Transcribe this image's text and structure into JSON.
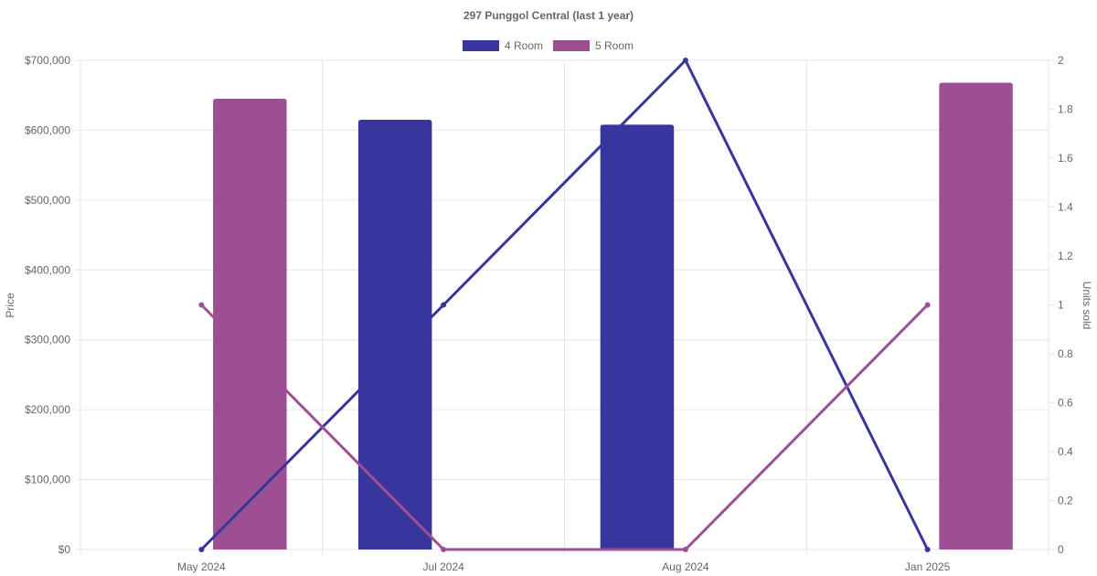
{
  "chart_data": {
    "type": "bar",
    "title": "297 Punggol Central (last 1 year)",
    "categories": [
      "May 2024",
      "Jul 2024",
      "Aug 2024",
      "Jan 2025"
    ],
    "y_left": {
      "label": "Price",
      "min": 0,
      "max": 700000,
      "ticks": [
        "$0",
        "$100,000",
        "$200,000",
        "$300,000",
        "$400,000",
        "$500,000",
        "$600,000",
        "$700,000"
      ],
      "tick_values": [
        0,
        100000,
        200000,
        300000,
        400000,
        500000,
        600000,
        700000
      ]
    },
    "y_right": {
      "label": "Units sold",
      "min": 0,
      "max": 2,
      "ticks": [
        "0",
        "0.2",
        "0.4",
        "0.6",
        "0.8",
        "1",
        "1.2",
        "1.4",
        "1.6",
        "1.8",
        "2"
      ],
      "tick_values": [
        0,
        0.2,
        0.4,
        0.6,
        0.8,
        1,
        1.2,
        1.4,
        1.6,
        1.8,
        2
      ]
    },
    "series": [
      {
        "name": "4 Room",
        "color": "#39359e",
        "price_values": [
          null,
          615000,
          608000,
          null
        ],
        "units_values": [
          0,
          1,
          2,
          0
        ]
      },
      {
        "name": "5 Room",
        "color": "#9e4f94",
        "price_values": [
          645000,
          null,
          null,
          668000
        ],
        "units_values": [
          1,
          0,
          0,
          1
        ]
      }
    ],
    "grid": true,
    "legend_position": "top-center"
  }
}
